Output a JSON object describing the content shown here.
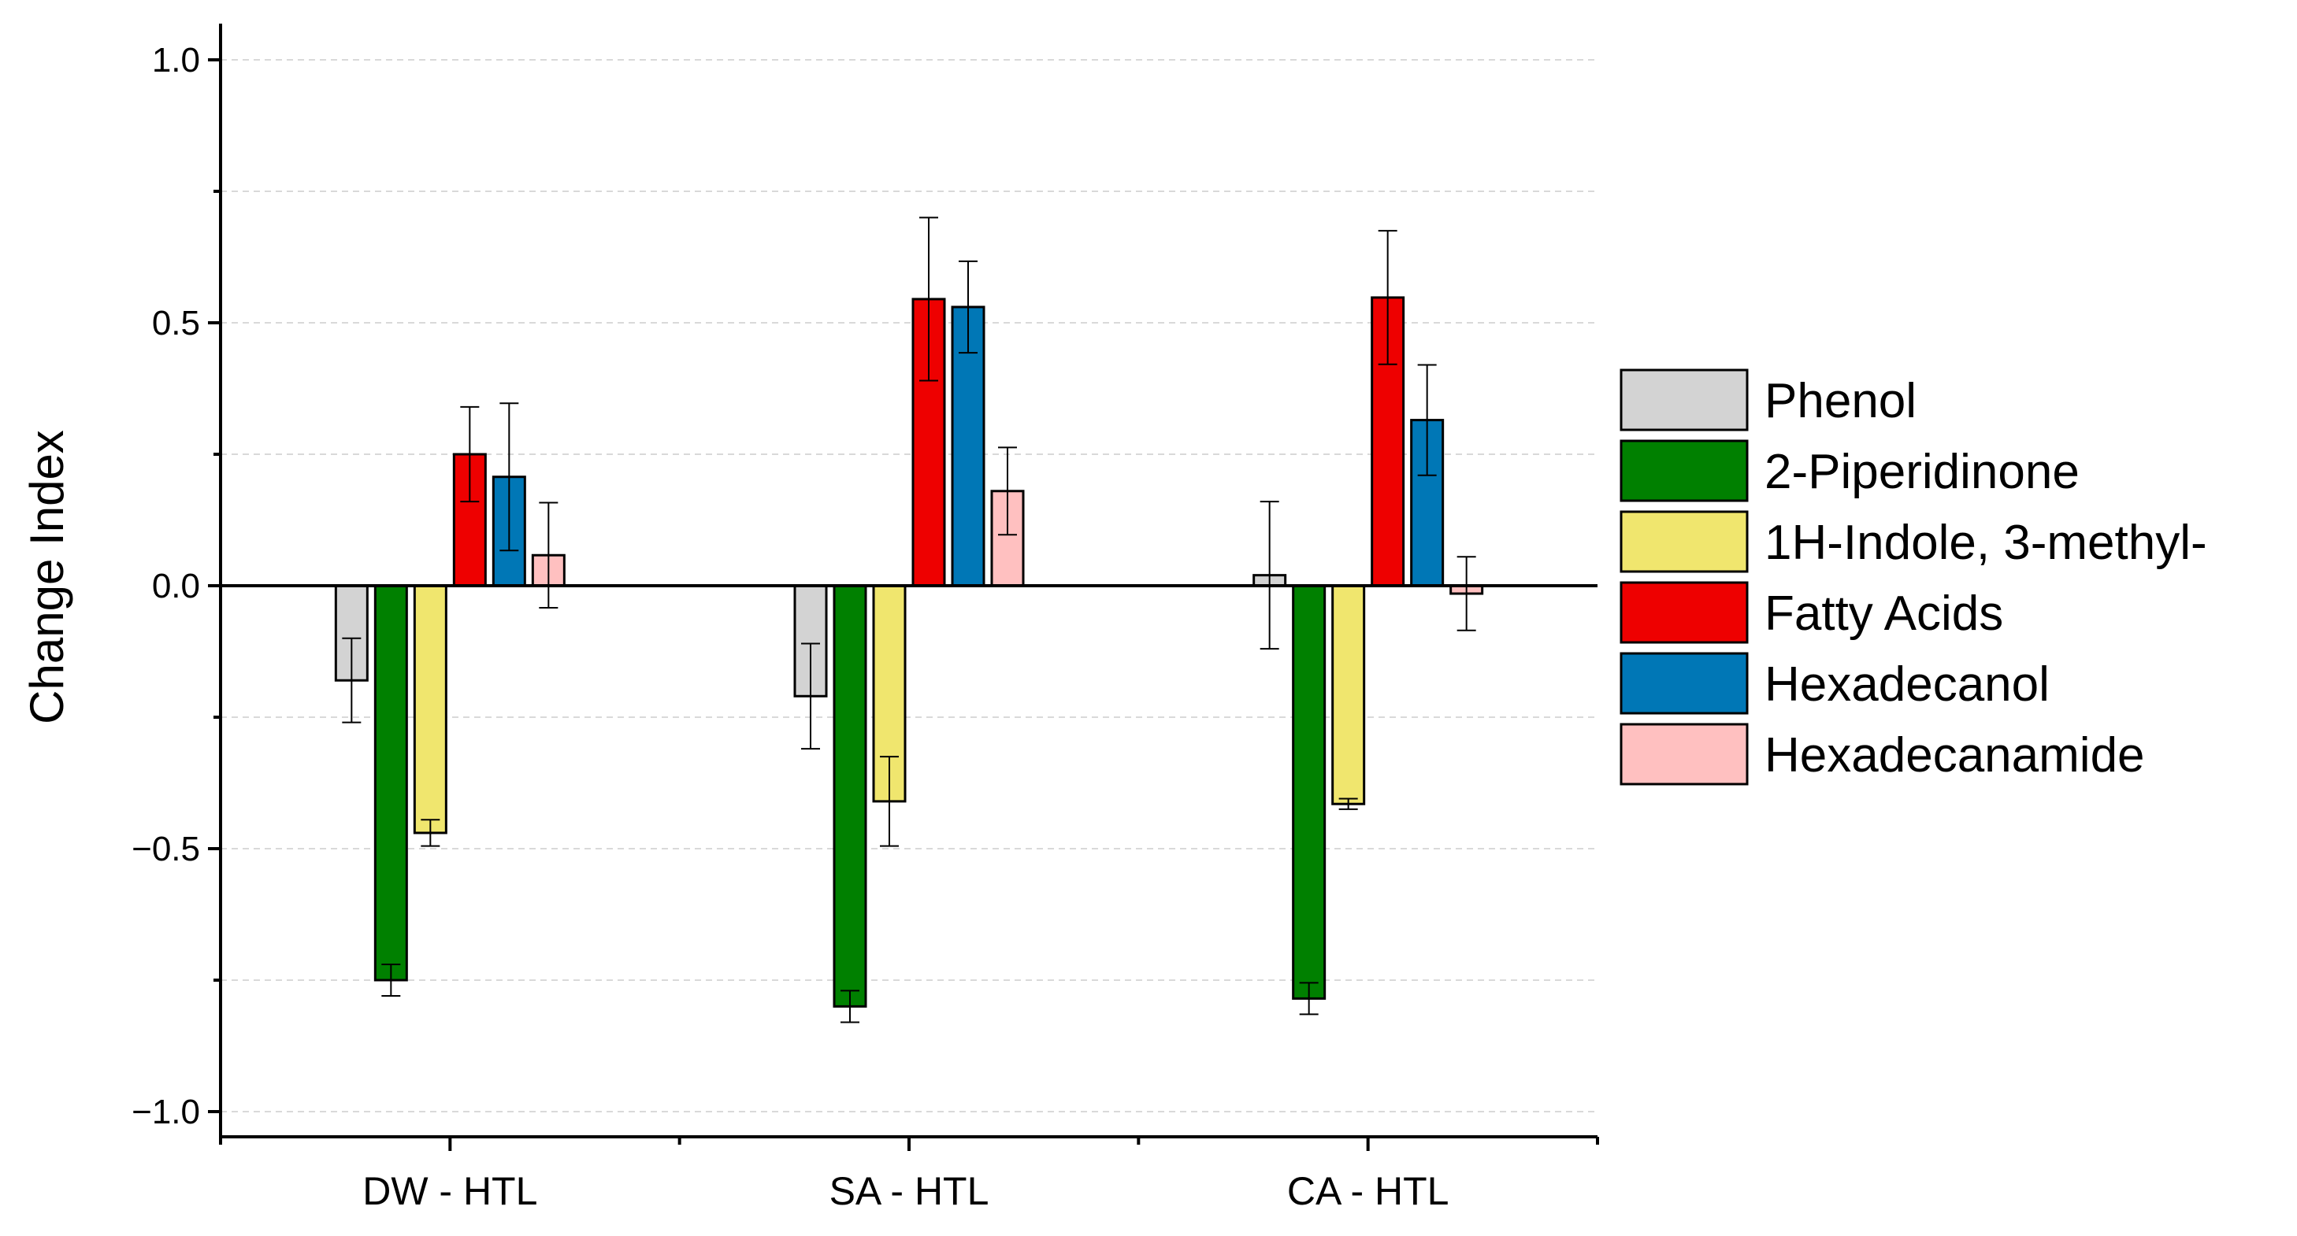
{
  "chart_data": {
    "type": "bar",
    "title": "",
    "xlabel": "",
    "ylabel": "Change Index",
    "ylim": [
      -1.05,
      1.05
    ],
    "yticks": [
      -1.0,
      -0.5,
      0.0,
      0.5,
      1.0
    ],
    "ytick_labels": [
      "−1.0",
      "−0.5",
      "0.0",
      "0.5",
      "1.0"
    ],
    "grid": true,
    "legend_position": "right",
    "categories": [
      "DW - HTL",
      "SA - HTL",
      "CA - HTL"
    ],
    "series": [
      {
        "name": "Phenol",
        "color": "#d3d3d3",
        "values": [
          -0.18,
          -0.21,
          0.02
        ],
        "errors": [
          0.08,
          0.1,
          0.14
        ]
      },
      {
        "name": "2-Piperidinone",
        "color": "#008000",
        "values": [
          -0.75,
          -0.8,
          -0.785
        ],
        "errors": [
          0.03,
          0.03,
          0.03
        ]
      },
      {
        "name": "1H-Indole, 3-methyl-",
        "color": "#f0e66e",
        "values": [
          -0.47,
          -0.41,
          -0.415
        ],
        "errors": [
          0.025,
          0.085,
          0.01
        ]
      },
      {
        "name": "Fatty Acids",
        "color": "#ee0000",
        "values": [
          0.25,
          0.545,
          0.548
        ],
        "errors": [
          0.09,
          0.155,
          0.127
        ]
      },
      {
        "name": "Hexadecanol",
        "color": "#0077b6",
        "values": [
          0.207,
          0.53,
          0.315
        ],
        "errors": [
          0.14,
          0.087,
          0.105
        ]
      },
      {
        "name": "Hexadecanamide",
        "color": "#ffc0c0",
        "values": [
          0.058,
          0.18,
          -0.015
        ],
        "errors": [
          0.1,
          0.083,
          0.07
        ]
      }
    ]
  }
}
